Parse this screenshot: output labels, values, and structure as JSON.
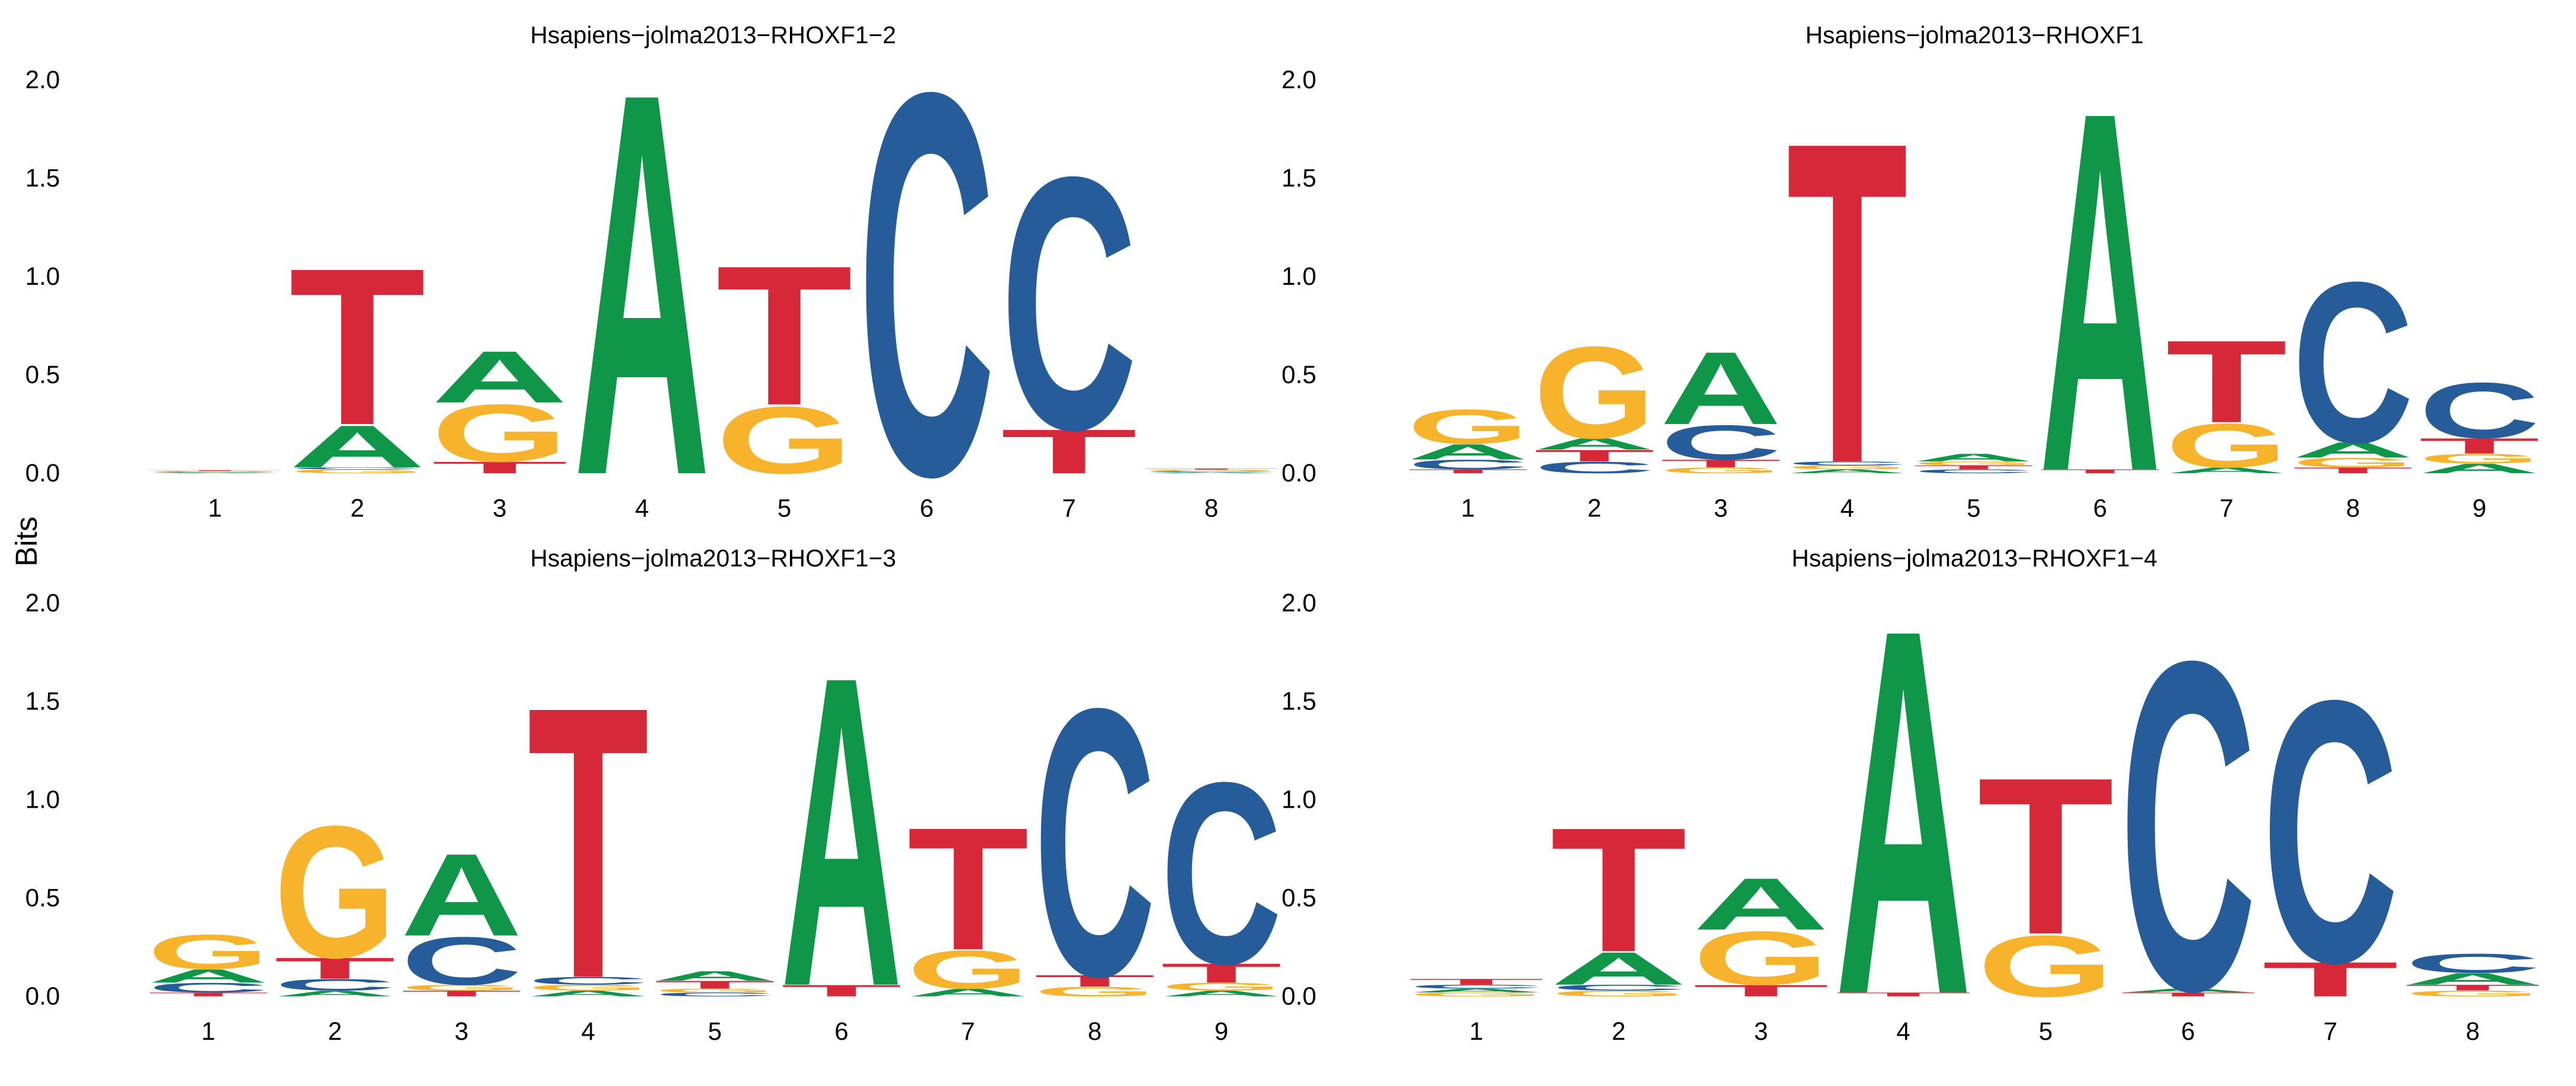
{
  "figure": {
    "ylabel": "Bits",
    "colors": {
      "A": "#109648",
      "C": "#255C99",
      "G": "#F7B32B",
      "T": "#D62839"
    }
  },
  "chart_data": [
    {
      "type": "sequence-logo",
      "title": "Hsapiens−jolma2013−RHOXF1−2",
      "ylim": [
        0,
        2.0
      ],
      "yticks": [
        "0.0",
        "0.5",
        "1.0",
        "1.5",
        "2.0"
      ],
      "positions": [
        {
          "x": "1",
          "letters": [
            {
              "b": "A",
              "h": 0.004
            },
            {
              "b": "C",
              "h": 0.004
            },
            {
              "b": "G",
              "h": 0.004
            },
            {
              "b": "T",
              "h": 0.004
            }
          ]
        },
        {
          "x": "2",
          "letters": [
            {
              "b": "G",
              "h": 0.02
            },
            {
              "b": "C",
              "h": 0.01
            },
            {
              "b": "A",
              "h": 0.22
            },
            {
              "b": "T",
              "h": 0.82
            }
          ]
        },
        {
          "x": "3",
          "letters": [
            {
              "b": "T",
              "h": 0.06
            },
            {
              "b": "G",
              "h": 0.3
            },
            {
              "b": "A",
              "h": 0.27
            }
          ]
        },
        {
          "x": "4",
          "letters": [
            {
              "b": "A",
              "h": 2.0
            }
          ]
        },
        {
          "x": "5",
          "letters": [
            {
              "b": "G",
              "h": 0.35
            },
            {
              "b": "T",
              "h": 0.73
            }
          ]
        },
        {
          "x": "6",
          "letters": [
            {
              "b": "C",
              "h": 2.0
            }
          ]
        },
        {
          "x": "7",
          "letters": [
            {
              "b": "T",
              "h": 0.23
            },
            {
              "b": "C",
              "h": 1.32
            }
          ]
        },
        {
          "x": "8",
          "letters": [
            {
              "b": "A",
              "h": 0.006
            },
            {
              "b": "C",
              "h": 0.006
            },
            {
              "b": "G",
              "h": 0.006
            },
            {
              "b": "T",
              "h": 0.006
            }
          ]
        }
      ]
    },
    {
      "type": "sequence-logo",
      "title": "Hsapiens−jolma2013−RHOXF1",
      "ylim": [
        0,
        2.0
      ],
      "yticks": [
        "0.0",
        "0.5",
        "1.0",
        "1.5",
        "2.0"
      ],
      "positions": [
        {
          "x": "1",
          "letters": [
            {
              "b": "T",
              "h": 0.02
            },
            {
              "b": "C",
              "h": 0.05
            },
            {
              "b": "A",
              "h": 0.08
            },
            {
              "b": "G",
              "h": 0.18
            }
          ]
        },
        {
          "x": "2",
          "letters": [
            {
              "b": "C",
              "h": 0.06
            },
            {
              "b": "T",
              "h": 0.06
            },
            {
              "b": "A",
              "h": 0.06
            },
            {
              "b": "G",
              "h": 0.48
            }
          ]
        },
        {
          "x": "3",
          "letters": [
            {
              "b": "G",
              "h": 0.03
            },
            {
              "b": "T",
              "h": 0.04
            },
            {
              "b": "C",
              "h": 0.18
            },
            {
              "b": "A",
              "h": 0.38
            }
          ]
        },
        {
          "x": "4",
          "letters": [
            {
              "b": "A",
              "h": 0.02
            },
            {
              "b": "G",
              "h": 0.02
            },
            {
              "b": "C",
              "h": 0.02
            },
            {
              "b": "T",
              "h": 1.68
            }
          ]
        },
        {
          "x": "5",
          "letters": [
            {
              "b": "C",
              "h": 0.02
            },
            {
              "b": "T",
              "h": 0.02
            },
            {
              "b": "G",
              "h": 0.02
            },
            {
              "b": "A",
              "h": 0.04
            }
          ]
        },
        {
          "x": "6",
          "letters": [
            {
              "b": "T",
              "h": 0.02
            },
            {
              "b": "A",
              "h": 1.88
            }
          ]
        },
        {
          "x": "7",
          "letters": [
            {
              "b": "A",
              "h": 0.03
            },
            {
              "b": "G",
              "h": 0.23
            },
            {
              "b": "T",
              "h": 0.43
            }
          ]
        },
        {
          "x": "8",
          "letters": [
            {
              "b": "T",
              "h": 0.03
            },
            {
              "b": "G",
              "h": 0.05
            },
            {
              "b": "A",
              "h": 0.08
            },
            {
              "b": "C",
              "h": 0.84
            }
          ]
        },
        {
          "x": "9",
          "letters": [
            {
              "b": "A",
              "h": 0.05
            },
            {
              "b": "G",
              "h": 0.05
            },
            {
              "b": "T",
              "h": 0.08
            },
            {
              "b": "C",
              "h": 0.29
            }
          ]
        }
      ]
    },
    {
      "type": "sequence-logo",
      "title": "Hsapiens−jolma2013−RHOXF1−3",
      "ylim": [
        0,
        2.0
      ],
      "yticks": [
        "0.0",
        "0.5",
        "1.0",
        "1.5",
        "2.0"
      ],
      "positions": [
        {
          "x": "1",
          "letters": [
            {
              "b": "T",
              "h": 0.02
            },
            {
              "b": "C",
              "h": 0.05
            },
            {
              "b": "A",
              "h": 0.07
            },
            {
              "b": "G",
              "h": 0.18
            }
          ]
        },
        {
          "x": "2",
          "letters": [
            {
              "b": "A",
              "h": 0.03
            },
            {
              "b": "C",
              "h": 0.06
            },
            {
              "b": "T",
              "h": 0.11
            },
            {
              "b": "G",
              "h": 0.69
            }
          ]
        },
        {
          "x": "3",
          "letters": [
            {
              "b": "T",
              "h": 0.03
            },
            {
              "b": "G",
              "h": 0.03
            },
            {
              "b": "C",
              "h": 0.25
            },
            {
              "b": "A",
              "h": 0.43
            }
          ]
        },
        {
          "x": "4",
          "letters": [
            {
              "b": "A",
              "h": 0.03
            },
            {
              "b": "G",
              "h": 0.03
            },
            {
              "b": "C",
              "h": 0.04
            },
            {
              "b": "T",
              "h": 1.42
            }
          ]
        },
        {
          "x": "5",
          "letters": [
            {
              "b": "C",
              "h": 0.02
            },
            {
              "b": "G",
              "h": 0.02
            },
            {
              "b": "T",
              "h": 0.04
            },
            {
              "b": "A",
              "h": 0.05
            }
          ]
        },
        {
          "x": "6",
          "letters": [
            {
              "b": "T",
              "h": 0.06
            },
            {
              "b": "A",
              "h": 1.62
            }
          ]
        },
        {
          "x": "7",
          "letters": [
            {
              "b": "A",
              "h": 0.04
            },
            {
              "b": "G",
              "h": 0.2
            },
            {
              "b": "T",
              "h": 0.64
            }
          ]
        },
        {
          "x": "8",
          "letters": [
            {
              "b": "G",
              "h": 0.05
            },
            {
              "b": "T",
              "h": 0.06
            },
            {
              "b": "C",
              "h": 1.4
            }
          ]
        },
        {
          "x": "9",
          "letters": [
            {
              "b": "A",
              "h": 0.03
            },
            {
              "b": "G",
              "h": 0.04
            },
            {
              "b": "T",
              "h": 0.1
            },
            {
              "b": "C",
              "h": 0.95
            }
          ]
        }
      ]
    },
    {
      "type": "sequence-logo",
      "title": "Hsapiens−jolma2013−RHOXF1−4",
      "ylim": [
        0,
        2.0
      ],
      "yticks": [
        "0.0",
        "0.5",
        "1.0",
        "1.5",
        "2.0"
      ],
      "positions": [
        {
          "x": "1",
          "letters": [
            {
              "b": "G",
              "h": 0.02
            },
            {
              "b": "A",
              "h": 0.02
            },
            {
              "b": "C",
              "h": 0.02
            },
            {
              "b": "T",
              "h": 0.03
            }
          ]
        },
        {
          "x": "2",
          "letters": [
            {
              "b": "G",
              "h": 0.03
            },
            {
              "b": "C",
              "h": 0.03
            },
            {
              "b": "A",
              "h": 0.17
            },
            {
              "b": "T",
              "h": 0.65
            }
          ]
        },
        {
          "x": "3",
          "letters": [
            {
              "b": "T",
              "h": 0.06
            },
            {
              "b": "G",
              "h": 0.28
            },
            {
              "b": "A",
              "h": 0.27
            }
          ]
        },
        {
          "x": "4",
          "letters": [
            {
              "b": "T",
              "h": 0.02
            },
            {
              "b": "A",
              "h": 1.91
            }
          ]
        },
        {
          "x": "5",
          "letters": [
            {
              "b": "G",
              "h": 0.32
            },
            {
              "b": "T",
              "h": 0.82
            }
          ]
        },
        {
          "x": "6",
          "letters": [
            {
              "b": "T",
              "h": 0.02
            },
            {
              "b": "A",
              "h": 0.02
            },
            {
              "b": "C",
              "h": 1.72
            }
          ]
        },
        {
          "x": "7",
          "letters": [
            {
              "b": "T",
              "h": 0.18
            },
            {
              "b": "C",
              "h": 1.37
            }
          ]
        },
        {
          "x": "8",
          "letters": [
            {
              "b": "G",
              "h": 0.03
            },
            {
              "b": "T",
              "h": 0.03
            },
            {
              "b": "A",
              "h": 0.06
            },
            {
              "b": "C",
              "h": 0.1
            }
          ]
        }
      ]
    }
  ]
}
